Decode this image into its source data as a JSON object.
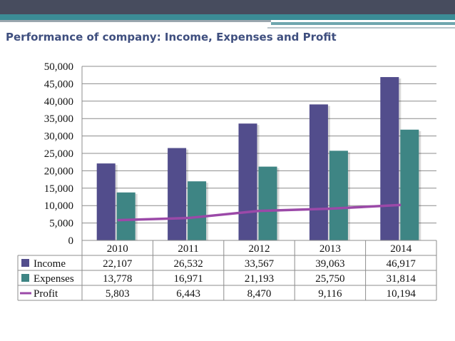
{
  "slide": {
    "title": "Performance of company: Income, Expenses and Profit"
  },
  "colors": {
    "header_band": "#474c5e",
    "header_teal": "#3b8c96",
    "income": "#524d8c",
    "expenses": "#3e8584",
    "profit": "#9b49a8",
    "grid": "#8c8c8c",
    "title": "#3f4f7f"
  },
  "chart_data": {
    "type": "bar",
    "categories": [
      "2010",
      "2011",
      "2012",
      "2013",
      "2014"
    ],
    "series": [
      {
        "name": "Income",
        "type": "bar",
        "values": [
          22107,
          26532,
          33567,
          39063,
          46917
        ],
        "labels": [
          "22,107",
          "26,532",
          "33,567",
          "39,063",
          "46,917"
        ]
      },
      {
        "name": "Expenses",
        "type": "bar",
        "values": [
          13778,
          16971,
          21193,
          25750,
          31814
        ],
        "labels": [
          "13,778",
          "16,971",
          "21,193",
          "25,750",
          "31,814"
        ]
      },
      {
        "name": "Profit",
        "type": "line",
        "values": [
          5803,
          6443,
          8470,
          9116,
          10194
        ],
        "labels": [
          "5,803",
          "6,443",
          "8,470",
          "9,116",
          "10,194"
        ]
      }
    ],
    "yticks": [
      "0",
      "5,000",
      "10,000",
      "15,000",
      "20,000",
      "25,000",
      "30,000",
      "35,000",
      "40,000",
      "45,000",
      "50,000"
    ],
    "ylim": [
      0,
      50000
    ],
    "grid": true,
    "legend": "data-table"
  }
}
